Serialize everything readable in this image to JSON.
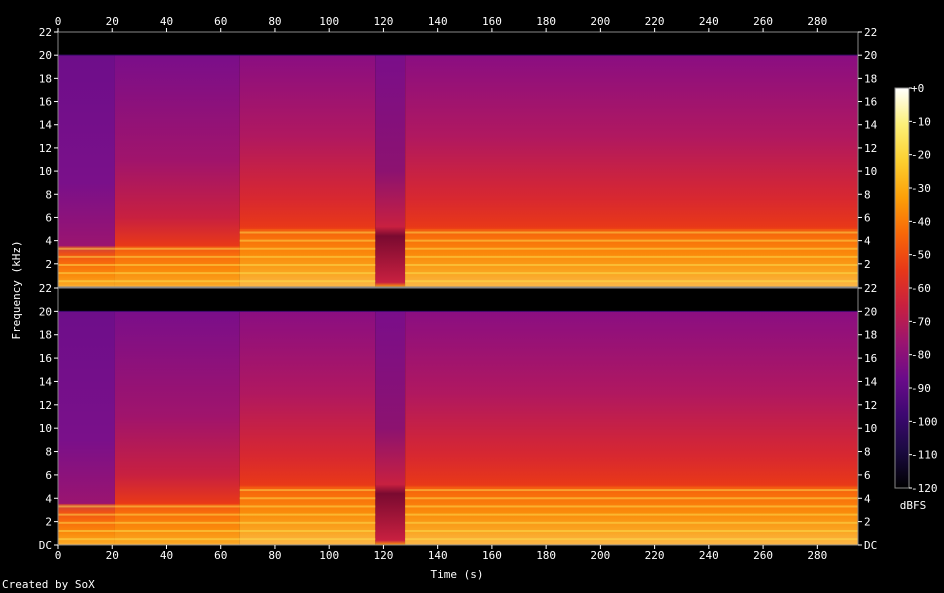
{
  "footer": "Created by SoX",
  "chart_data": {
    "type": "heatmap",
    "subtype": "spectrogram",
    "xlabel": "Time (s)",
    "ylabel": "Frequency (kHz)",
    "colorbar_label": "dBFS",
    "xlim": [
      0,
      295
    ],
    "ylim": [
      0,
      22
    ],
    "x_ticks": [
      0,
      20,
      40,
      60,
      80,
      100,
      120,
      140,
      160,
      180,
      200,
      220,
      240,
      260,
      280
    ],
    "channel_top_ticks": [
      "22",
      "20",
      "18",
      "16",
      "14",
      "12",
      "10",
      "8",
      "6",
      "4",
      "2"
    ],
    "channel_bottom_ticks": [
      "22",
      "20",
      "18",
      "16",
      "14",
      "12",
      "10",
      "8",
      "6",
      "4",
      "2",
      "DC"
    ],
    "channels": 2,
    "content_cutoff_khz": 20,
    "colorbar_ticks": [
      "+0",
      "-10",
      "-20",
      "-30",
      "-40",
      "-50",
      "-60",
      "-70",
      "-80",
      "-90",
      "-100",
      "-110",
      "-120"
    ],
    "colorbar_range_dbfs": [
      -120,
      0
    ],
    "colorscale": [
      "#000000",
      "#1a0a40",
      "#3c0870",
      "#6a0a8a",
      "#9a1470",
      "#c82040",
      "#e83818",
      "#f86808",
      "#fca008",
      "#fcd030",
      "#fcf078",
      "#ffffff"
    ],
    "segments": [
      {
        "x": [
          0,
          21
        ],
        "band_top_khz": 3.5
      },
      {
        "x": [
          21,
          67
        ],
        "band_top_khz": 3.5
      },
      {
        "x": [
          67,
          117
        ],
        "band_top_khz": 5
      },
      {
        "x": [
          117,
          128
        ],
        "band_top_khz": 5,
        "gap": true
      },
      {
        "x": [
          128,
          295
        ],
        "band_top_khz": 5
      }
    ]
  }
}
